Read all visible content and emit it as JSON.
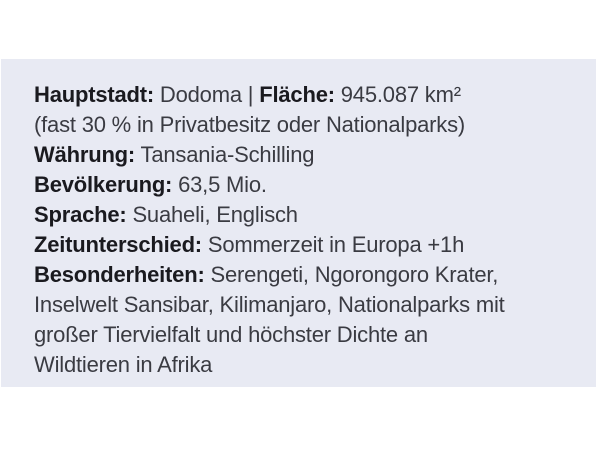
{
  "page": {
    "background_color": "#ffffff"
  },
  "infobox": {
    "background_color": "#e8eaf3",
    "text_color": "#3a3b42",
    "label_color": "#1a1a1f",
    "lines": [
      {
        "segments": [
          {
            "text": "Hauptstadt:",
            "bold": true
          },
          {
            "text": " Dodoma | ",
            "bold": false
          },
          {
            "text": "Fläche:",
            "bold": true
          },
          {
            "text": " 945.087 km²",
            "bold": false
          }
        ]
      },
      {
        "segments": [
          {
            "text": "(fast 30 % in Privatbesitz oder Nationalparks)",
            "bold": false
          }
        ]
      },
      {
        "segments": [
          {
            "text": "Währung:",
            "bold": true
          },
          {
            "text": " Tansania-Schilling",
            "bold": false
          }
        ]
      },
      {
        "segments": [
          {
            "text": "Bevölkerung:",
            "bold": true
          },
          {
            "text": " 63,5 Mio.",
            "bold": false
          }
        ]
      },
      {
        "segments": [
          {
            "text": "Sprache:",
            "bold": true
          },
          {
            "text": " Suaheli, Englisch",
            "bold": false
          }
        ]
      },
      {
        "segments": [
          {
            "text": "Zeitunterschied:",
            "bold": true
          },
          {
            "text": " Sommerzeit in Europa +1h",
            "bold": false
          }
        ]
      },
      {
        "segments": [
          {
            "text": "Besonderheiten:",
            "bold": true
          },
          {
            "text": " Serengeti, Ngorongoro Krater,",
            "bold": false
          }
        ]
      },
      {
        "segments": [
          {
            "text": "Inselwelt Sansibar, Kilimanjaro, Nationalparks mit",
            "bold": false
          }
        ]
      },
      {
        "segments": [
          {
            "text": "großer Tiervielfalt und höchster Dichte an",
            "bold": false
          }
        ]
      },
      {
        "segments": [
          {
            "text": "Wildtieren in Afrika",
            "bold": false
          }
        ]
      }
    ]
  }
}
